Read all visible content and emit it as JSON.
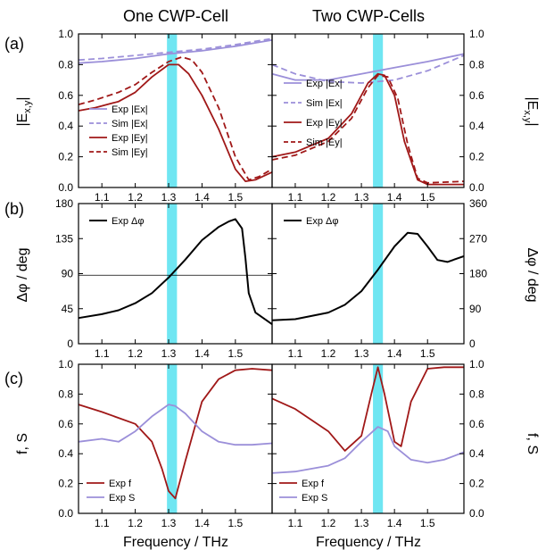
{
  "figure": {
    "col_titles": [
      "One CWP-Cell",
      "Two CWP-Cells"
    ],
    "panel_labels": [
      "(a)",
      "(b)",
      "(c)"
    ],
    "ylabels": {
      "a": "|E_{x,y}|",
      "b": "Δφ / deg",
      "c": "f, S"
    },
    "xlabel": "Frequency / THz",
    "colors": {
      "purple": "#9b8fd9",
      "red": "#a01818",
      "black": "#000000",
      "band": "#6fe6f2"
    }
  },
  "chart_data": [
    {
      "type": "line",
      "id": "a-left",
      "xlim": [
        1.03,
        1.61
      ],
      "ylim": [
        0.0,
        1.0
      ],
      "xticks": [
        "1.1",
        "1.2",
        "1.3",
        "1.4",
        "1.5"
      ],
      "yticks": [
        "0.0",
        "0.2",
        "0.4",
        "0.6",
        "0.8",
        "1.0"
      ],
      "band": [
        1.295,
        1.325
      ],
      "series": [
        {
          "name": "Exp |Ex|",
          "color": "purple",
          "dash": false,
          "x": [
            1.03,
            1.1,
            1.2,
            1.3,
            1.4,
            1.5,
            1.61
          ],
          "y": [
            0.81,
            0.82,
            0.84,
            0.87,
            0.89,
            0.92,
            0.96
          ]
        },
        {
          "name": "Sim |Ex|",
          "color": "purple",
          "dash": true,
          "x": [
            1.03,
            1.1,
            1.2,
            1.3,
            1.4,
            1.5,
            1.61
          ],
          "y": [
            0.83,
            0.84,
            0.86,
            0.88,
            0.9,
            0.93,
            0.97
          ]
        },
        {
          "name": "Exp |Ey|",
          "color": "red",
          "dash": false,
          "x": [
            1.03,
            1.08,
            1.15,
            1.2,
            1.25,
            1.3,
            1.33,
            1.36,
            1.4,
            1.45,
            1.5,
            1.53,
            1.56,
            1.61
          ],
          "y": [
            0.5,
            0.52,
            0.56,
            0.62,
            0.72,
            0.8,
            0.8,
            0.74,
            0.6,
            0.38,
            0.12,
            0.04,
            0.05,
            0.1
          ]
        },
        {
          "name": "Sim |Ey|",
          "color": "red",
          "dash": true,
          "x": [
            1.03,
            1.08,
            1.15,
            1.2,
            1.25,
            1.3,
            1.34,
            1.37,
            1.4,
            1.45,
            1.5,
            1.54,
            1.57,
            1.61
          ],
          "y": [
            0.54,
            0.57,
            0.62,
            0.67,
            0.75,
            0.82,
            0.85,
            0.83,
            0.75,
            0.52,
            0.2,
            0.05,
            0.07,
            0.12
          ]
        }
      ],
      "legend": [
        "Exp |Ex|",
        "Sim |Ex|",
        "Exp |Ey|",
        "Sim |Ey|"
      ]
    },
    {
      "type": "line",
      "id": "a-right",
      "xlim": [
        1.03,
        1.61
      ],
      "ylim": [
        0.0,
        1.0
      ],
      "xticks": [
        "1.1",
        "1.2",
        "1.3",
        "1.4",
        "1.5"
      ],
      "yticks": [
        "0.0",
        "0.2",
        "0.4",
        "0.6",
        "0.8",
        "1.0"
      ],
      "band": [
        1.335,
        1.365
      ],
      "series": [
        {
          "name": "Exp |Ex|",
          "color": "purple",
          "dash": false,
          "x": [
            1.03,
            1.1,
            1.2,
            1.3,
            1.4,
            1.5,
            1.61
          ],
          "y": [
            0.74,
            0.7,
            0.7,
            0.74,
            0.78,
            0.82,
            0.87
          ]
        },
        {
          "name": "Sim |Ex|",
          "color": "purple",
          "dash": true,
          "x": [
            1.03,
            1.1,
            1.2,
            1.3,
            1.4,
            1.5,
            1.61
          ],
          "y": [
            0.8,
            0.74,
            0.69,
            0.68,
            0.7,
            0.76,
            0.86
          ]
        },
        {
          "name": "Exp |Ey|",
          "color": "red",
          "dash": false,
          "x": [
            1.03,
            1.1,
            1.2,
            1.27,
            1.32,
            1.35,
            1.37,
            1.4,
            1.43,
            1.47,
            1.5,
            1.61
          ],
          "y": [
            0.2,
            0.23,
            0.32,
            0.48,
            0.68,
            0.74,
            0.73,
            0.6,
            0.3,
            0.05,
            0.02,
            0.02
          ]
        },
        {
          "name": "Sim |Ey|",
          "color": "red",
          "dash": true,
          "x": [
            1.03,
            1.1,
            1.2,
            1.27,
            1.32,
            1.35,
            1.38,
            1.41,
            1.44,
            1.47,
            1.5,
            1.61
          ],
          "y": [
            0.18,
            0.21,
            0.3,
            0.45,
            0.65,
            0.73,
            0.72,
            0.58,
            0.28,
            0.06,
            0.03,
            0.04
          ]
        }
      ],
      "legend": [
        "Exp |Ex|",
        "Sim |Ex|",
        "Exp |Ey|",
        "Sim |Ey|"
      ]
    },
    {
      "type": "line",
      "id": "b-left",
      "xlim": [
        1.03,
        1.61
      ],
      "ylim": [
        0,
        180
      ],
      "xticks": [
        "1.1",
        "1.2",
        "1.3",
        "1.4",
        "1.5"
      ],
      "yticks": [
        "0",
        "45",
        "90",
        "135",
        "180"
      ],
      "band": [
        1.295,
        1.325
      ],
      "hline": 88,
      "series": [
        {
          "name": "Exp Δφ",
          "color": "black",
          "dash": false,
          "x": [
            1.03,
            1.1,
            1.15,
            1.2,
            1.25,
            1.3,
            1.35,
            1.4,
            1.45,
            1.48,
            1.5,
            1.52,
            1.53,
            1.54,
            1.56,
            1.61
          ],
          "y": [
            33,
            38,
            43,
            52,
            65,
            85,
            108,
            133,
            150,
            157,
            160,
            148,
            110,
            65,
            40,
            25
          ]
        }
      ],
      "legend": [
        "Exp Δφ"
      ]
    },
    {
      "type": "line",
      "id": "b-right",
      "xlim": [
        1.03,
        1.61
      ],
      "ylim": [
        0,
        360
      ],
      "xticks": [
        "1.1",
        "1.2",
        "1.3",
        "1.4",
        "1.5"
      ],
      "yticks": [
        "0",
        "90",
        "180",
        "270",
        "360"
      ],
      "band": [
        1.335,
        1.365
      ],
      "series": [
        {
          "name": "Exp Δφ",
          "color": "black",
          "dash": false,
          "x": [
            1.03,
            1.1,
            1.2,
            1.25,
            1.3,
            1.35,
            1.4,
            1.44,
            1.47,
            1.5,
            1.53,
            1.56,
            1.61
          ],
          "y": [
            60,
            63,
            80,
            100,
            135,
            190,
            250,
            285,
            282,
            250,
            215,
            210,
            225
          ]
        }
      ],
      "legend": [
        "Exp Δφ"
      ]
    },
    {
      "type": "line",
      "id": "c-left",
      "xlim": [
        1.03,
        1.61
      ],
      "ylim": [
        0.0,
        1.0
      ],
      "xticks": [
        "1.1",
        "1.2",
        "1.3",
        "1.4",
        "1.5"
      ],
      "yticks": [
        "0.0",
        "0.2",
        "0.4",
        "0.6",
        "0.8",
        "1.0"
      ],
      "band": [
        1.295,
        1.325
      ],
      "series": [
        {
          "name": "Exp f",
          "color": "red",
          "dash": false,
          "x": [
            1.03,
            1.1,
            1.2,
            1.25,
            1.28,
            1.3,
            1.32,
            1.35,
            1.4,
            1.45,
            1.5,
            1.55,
            1.61
          ],
          "y": [
            0.73,
            0.68,
            0.6,
            0.48,
            0.3,
            0.15,
            0.1,
            0.35,
            0.75,
            0.9,
            0.96,
            0.97,
            0.96
          ]
        },
        {
          "name": "Exp S",
          "color": "purple",
          "dash": false,
          "x": [
            1.03,
            1.1,
            1.15,
            1.2,
            1.25,
            1.3,
            1.32,
            1.35,
            1.4,
            1.45,
            1.5,
            1.55,
            1.61
          ],
          "y": [
            0.48,
            0.5,
            0.48,
            0.55,
            0.65,
            0.73,
            0.72,
            0.67,
            0.55,
            0.48,
            0.46,
            0.46,
            0.47
          ]
        }
      ],
      "legend": [
        "Exp f",
        "Exp S"
      ]
    },
    {
      "type": "line",
      "id": "c-right",
      "xlim": [
        1.03,
        1.61
      ],
      "ylim": [
        0.0,
        1.0
      ],
      "xticks": [
        "1.1",
        "1.2",
        "1.3",
        "1.4",
        "1.5"
      ],
      "yticks": [
        "0.0",
        "0.2",
        "0.4",
        "0.6",
        "0.8",
        "1.0"
      ],
      "band": [
        1.335,
        1.365
      ],
      "series": [
        {
          "name": "Exp f",
          "color": "red",
          "dash": false,
          "x": [
            1.03,
            1.1,
            1.2,
            1.25,
            1.3,
            1.33,
            1.35,
            1.37,
            1.4,
            1.42,
            1.45,
            1.5,
            1.55,
            1.61
          ],
          "y": [
            0.77,
            0.7,
            0.55,
            0.42,
            0.52,
            0.8,
            0.98,
            0.8,
            0.48,
            0.45,
            0.75,
            0.97,
            0.98,
            0.98
          ]
        },
        {
          "name": "Exp S",
          "color": "purple",
          "dash": false,
          "x": [
            1.03,
            1.1,
            1.2,
            1.25,
            1.3,
            1.35,
            1.38,
            1.4,
            1.45,
            1.5,
            1.55,
            1.61
          ],
          "y": [
            0.27,
            0.28,
            0.32,
            0.37,
            0.48,
            0.58,
            0.55,
            0.45,
            0.36,
            0.34,
            0.36,
            0.41
          ]
        }
      ],
      "legend": [
        "Exp f",
        "Exp S"
      ]
    }
  ]
}
